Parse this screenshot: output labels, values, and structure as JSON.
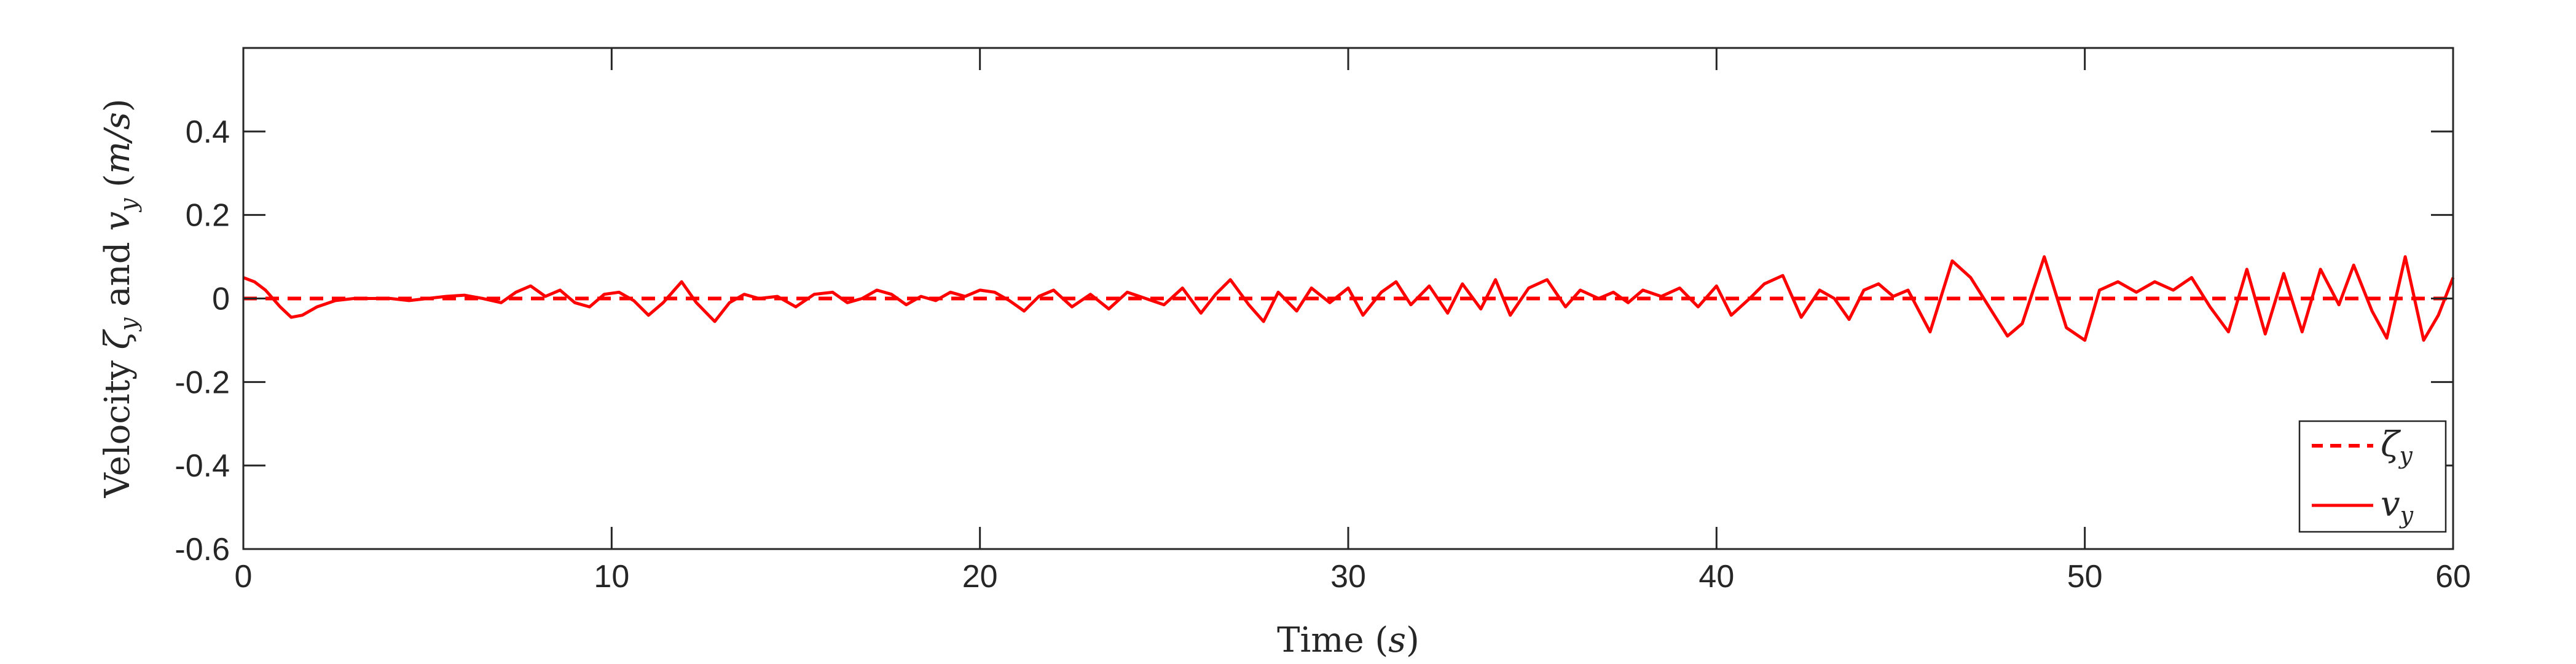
{
  "chart_data": {
    "type": "line",
    "title": "",
    "xlabel": "Time (s)",
    "ylabel": "Velocity ζ_y and v_y (m/s)",
    "xlim": [
      0,
      60
    ],
    "ylim": [
      -0.6,
      0.6
    ],
    "xticks": [
      0,
      10,
      20,
      30,
      40,
      50,
      60
    ],
    "xtick_labels": [
      "0",
      "10",
      "20",
      "30",
      "40",
      "50",
      "60"
    ],
    "yticks": [
      -0.6,
      -0.4,
      -0.2,
      0,
      0.2,
      0.4
    ],
    "ytick_labels": [
      "-0.6",
      "-0.4",
      "-0.2",
      "0",
      "0.2",
      "0.4"
    ],
    "grid": false,
    "legend_location": "bottom-right",
    "series": [
      {
        "name": "ζ_y",
        "color": "#ff0000",
        "style": "dashed",
        "x": [
          0,
          60
        ],
        "y": [
          0,
          0
        ]
      },
      {
        "name": "v_y",
        "color": "#ff0000",
        "style": "solid",
        "x": [
          0,
          0.3,
          0.6,
          1.0,
          1.3,
          1.6,
          2.0,
          2.5,
          3.0,
          3.5,
          4.0,
          4.5,
          5.0,
          5.5,
          6.0,
          6.5,
          7.0,
          7.4,
          7.8,
          8.2,
          8.6,
          9.0,
          9.4,
          9.8,
          10.2,
          10.6,
          11.0,
          11.4,
          11.9,
          12.3,
          12.8,
          13.2,
          13.6,
          14.0,
          14.5,
          15.0,
          15.5,
          16.0,
          16.4,
          16.8,
          17.2,
          17.6,
          18.0,
          18.4,
          18.8,
          19.2,
          19.6,
          20.0,
          20.4,
          20.8,
          21.2,
          21.6,
          22.0,
          22.5,
          23.0,
          23.5,
          24.0,
          24.5,
          25.0,
          25.5,
          26.0,
          26.4,
          26.8,
          27.3,
          27.7,
          28.1,
          28.6,
          29.0,
          29.5,
          30.0,
          30.4,
          30.9,
          31.3,
          31.7,
          32.2,
          32.7,
          33.1,
          33.6,
          34.0,
          34.4,
          34.9,
          35.4,
          35.9,
          36.3,
          36.8,
          37.2,
          37.6,
          38.0,
          38.5,
          39.0,
          39.5,
          40.0,
          40.4,
          40.9,
          41.3,
          41.8,
          42.3,
          42.8,
          43.2,
          43.6,
          44.0,
          44.4,
          44.8,
          45.2,
          45.8,
          46.4,
          46.9,
          47.4,
          47.9,
          48.3,
          48.9,
          49.5,
          50.0,
          50.4,
          50.9,
          51.4,
          51.9,
          52.4,
          52.9,
          53.4,
          53.9,
          54.4,
          54.9,
          55.4,
          55.9,
          56.4,
          56.9,
          57.3,
          57.8,
          58.2,
          58.7,
          59.2,
          59.6,
          60.0
        ],
        "y": [
          0.05,
          0.04,
          0.02,
          -0.02,
          -0.045,
          -0.04,
          -0.02,
          -0.005,
          0.0,
          0.0,
          0.0,
          -0.005,
          0.0,
          0.005,
          0.008,
          0.0,
          -0.01,
          0.015,
          0.03,
          0.005,
          0.02,
          -0.01,
          -0.02,
          0.01,
          0.015,
          -0.005,
          -0.04,
          -0.01,
          0.04,
          -0.01,
          -0.055,
          -0.01,
          0.01,
          0.0,
          0.005,
          -0.02,
          0.01,
          0.015,
          -0.01,
          0.0,
          0.02,
          0.01,
          -0.015,
          0.005,
          -0.005,
          0.015,
          0.005,
          0.02,
          0.015,
          -0.005,
          -0.03,
          0.005,
          0.02,
          -0.02,
          0.01,
          -0.025,
          0.015,
          0.0,
          -0.015,
          0.025,
          -0.035,
          0.01,
          0.045,
          -0.015,
          -0.055,
          0.015,
          -0.03,
          0.025,
          -0.01,
          0.025,
          -0.04,
          0.015,
          0.04,
          -0.015,
          0.03,
          -0.035,
          0.035,
          -0.025,
          0.045,
          -0.04,
          0.025,
          0.045,
          -0.02,
          0.02,
          0.0,
          0.015,
          -0.01,
          0.02,
          0.005,
          0.025,
          -0.02,
          0.03,
          -0.04,
          0.0,
          0.035,
          0.055,
          -0.045,
          0.02,
          0.0,
          -0.05,
          0.02,
          0.035,
          0.005,
          0.02,
          -0.08,
          0.09,
          0.05,
          -0.02,
          -0.09,
          -0.06,
          0.1,
          -0.07,
          -0.1,
          0.02,
          0.04,
          0.015,
          0.04,
          0.02,
          0.05,
          -0.02,
          -0.08,
          0.07,
          -0.085,
          0.06,
          -0.08,
          0.07,
          -0.015,
          0.08,
          -0.03,
          -0.095,
          0.1,
          -0.1,
          -0.04,
          0.05
        ]
      }
    ]
  }
}
